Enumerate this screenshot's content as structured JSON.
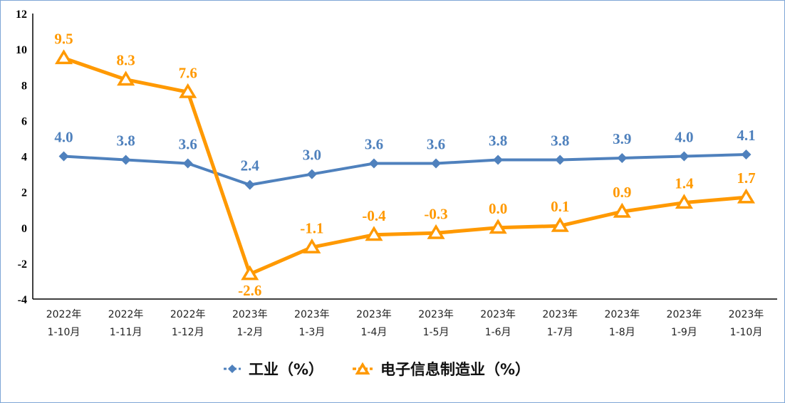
{
  "chart_data": {
    "type": "line",
    "categories": [
      [
        "2022年",
        "1-10月"
      ],
      [
        "2022年",
        "1-11月"
      ],
      [
        "2022年",
        "1-12月"
      ],
      [
        "2023年",
        "1-2月"
      ],
      [
        "2023年",
        "1-3月"
      ],
      [
        "2023年",
        "1-4月"
      ],
      [
        "2023年",
        "1-5月"
      ],
      [
        "2023年",
        "1-6月"
      ],
      [
        "2023年",
        "1-7月"
      ],
      [
        "2023年",
        "1-8月"
      ],
      [
        "2023年",
        "1-9月"
      ],
      [
        "2023年",
        "1-10月"
      ]
    ],
    "series": [
      {
        "name": "工业（%）",
        "color": "#4F81BD",
        "marker": "diamond",
        "values": [
          4.0,
          3.8,
          3.6,
          2.4,
          3.0,
          3.6,
          3.6,
          3.8,
          3.8,
          3.9,
          4.0,
          4.1
        ]
      },
      {
        "name": "电子信息制造业（%）",
        "color": "#FF9900",
        "marker": "triangle",
        "values": [
          9.5,
          8.3,
          7.6,
          -2.6,
          -1.1,
          -0.4,
          -0.3,
          0.0,
          0.1,
          0.9,
          1.4,
          1.7
        ]
      }
    ],
    "ylim": [
      -4,
      12
    ],
    "yticks": [
      -4,
      -2,
      0,
      2,
      4,
      6,
      8,
      10,
      12
    ],
    "grid": false,
    "legend": "bottom",
    "title": "",
    "xlabel": "",
    "ylabel": ""
  }
}
